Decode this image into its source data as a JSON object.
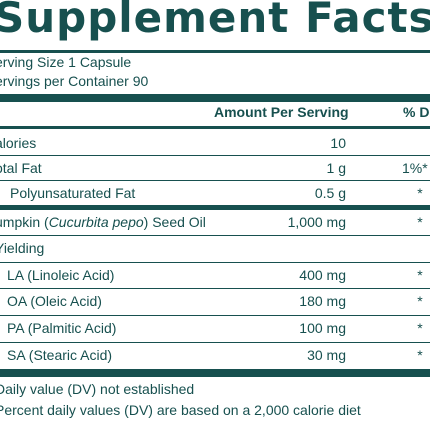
{
  "title": "Supplement Facts",
  "serving_size": "erving Size 1 Capsule",
  "servings_per_container": "ervings per Container 90",
  "header": {
    "amount": "Amount Per Serving",
    "dv": "% D"
  },
  "rows": [
    {
      "name": "alories",
      "amount": "10",
      "dv": ""
    },
    {
      "name": "otal Fat",
      "amount": "1 g",
      "dv": "1%*"
    },
    {
      "name": "Polyunsaturated Fat",
      "amount": "0.5 g",
      "dv": "*"
    },
    {
      "name_pre": "umpkin (",
      "name_italic": "Cucurbita pepo",
      "name_post": ") Seed Oil",
      "amount": "1,000 mg",
      "dv": "*"
    },
    {
      "name": "Yielding",
      "amount": "",
      "dv": ""
    },
    {
      "name": "LA (Linoleic Acid)",
      "amount": "400 mg",
      "dv": "*"
    },
    {
      "name": "OA (Oleic Acid)",
      "amount": "180 mg",
      "dv": "*"
    },
    {
      "name": "PA (Palmitic Acid)",
      "amount": "100 mg",
      "dv": "*"
    },
    {
      "name": "SA (Stearic Acid)",
      "amount": "30 mg",
      "dv": "*"
    }
  ],
  "footnotes": [
    "Daily value (DV) not established",
    "Percent daily values (DV) are based on a 2,000 calorie diet"
  ],
  "colors": {
    "ink": "#17504f",
    "background": "#ffffff"
  }
}
